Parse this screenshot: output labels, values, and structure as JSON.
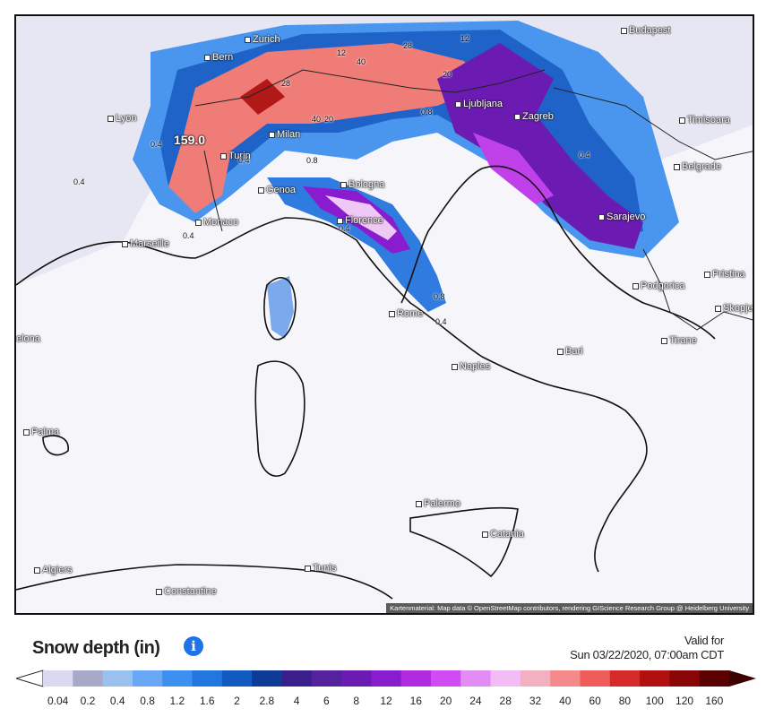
{
  "legend": {
    "title": "Snow depth (in)",
    "info_icon": "info-circle-icon",
    "valid_label": "Valid for",
    "valid_time": "Sun 03/22/2020, 07:00am CDT",
    "ticks": [
      "0.04",
      "0.2",
      "0.4",
      "0.8",
      "1.2",
      "1.6",
      "2",
      "2.8",
      "4",
      "6",
      "8",
      "12",
      "16",
      "20",
      "24",
      "28",
      "32",
      "40",
      "60",
      "80",
      "100",
      "120",
      "160"
    ],
    "colors": [
      "#d9d9f2",
      "#a8a8c8",
      "#9ac0f0",
      "#6aa8f5",
      "#3d8ff0",
      "#2176e0",
      "#1259c0",
      "#0d3c96",
      "#3a1f8c",
      "#55229e",
      "#6b1ab2",
      "#8a1cd0",
      "#b02be0",
      "#d04cf2",
      "#e28cf5",
      "#f2bcf5",
      "#f3b0c0",
      "#f58a8a",
      "#ef5c5c",
      "#d62a2a",
      "#b21010",
      "#8a0606",
      "#5a0202"
    ],
    "arrow_left": "#ffffff",
    "arrow_right": "#3d0000"
  },
  "map": {
    "max_label": "159.0",
    "attribution": "Kartenmaterial: Map data © OpenStreetMap contributors, rendering GIScience Research Group @ Heidelberg University",
    "cities": [
      "Bern",
      "Zurich",
      "Budapest",
      "Lyon",
      "Ljubljana",
      "Zagreb",
      "Timisoara",
      "Milan",
      "Turin",
      "Belgrade",
      "Genoa",
      "Bologna",
      "Monaco",
      "Florence",
      "Sarajevo",
      "Marseille",
      "Pristina",
      "Podgorica",
      "Skopje",
      "Rome",
      "Tirane",
      "Bari",
      "Naples",
      "Palma",
      "Palermo",
      "Catania",
      "Algiers",
      "Tunis",
      "Constantine",
      "elona"
    ],
    "values": [
      "0.4",
      "0.4",
      "0.4",
      "0.4",
      "28",
      "40",
      "12",
      "20",
      "0.8",
      "0.8",
      "0.4",
      "0.4",
      "0.8",
      "12",
      "40",
      "20",
      "28",
      "0.4"
    ]
  }
}
